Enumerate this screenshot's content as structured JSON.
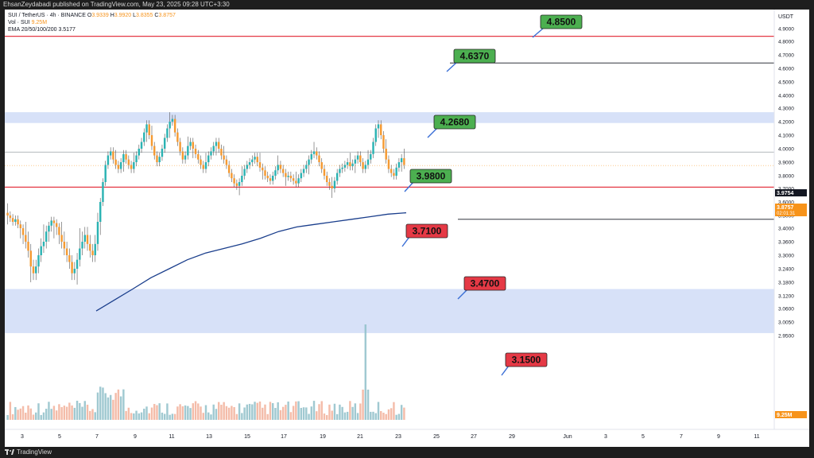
{
  "header": {
    "publisher_line": "EhsanZeydabadi published on TradingView.com, May 23, 2025 09:28 UTC+3:30"
  },
  "legend": {
    "symbol_line": "SUI / TetherUS · 4h · BINANCE",
    "o_label": "O",
    "o_value": "3.9339",
    "h_label": "H",
    "h_value": "3.9920",
    "l_label": "L",
    "l_value": "3.8355",
    "c_label": "C",
    "c_value": "3.8757",
    "vol_label": "Vol · SUI",
    "vol_value": "9.25M",
    "ema_label": "EMA 20/50/100/200",
    "ema_value": "3.5177"
  },
  "footer": {
    "brand": "TradingView"
  },
  "chart_data": {
    "type": "candlestick",
    "symbol": "SUI / TetherUS",
    "interval": "4h",
    "exchange": "BINANCE",
    "currency_label": "USDT",
    "y_ticks": [
      "4.9000",
      "4.8000",
      "4.7000",
      "4.6000",
      "4.5000",
      "4.4000",
      "4.3000",
      "4.2000",
      "4.1000",
      "4.0000",
      "3.9000",
      "3.8000",
      "3.7000",
      "3.6000",
      "3.5000",
      "3.4000",
      "3.3600",
      "3.3000",
      "3.2400",
      "3.1800",
      "3.1200",
      "3.0600",
      "3.0050",
      "2.9500"
    ],
    "x_ticks": [
      "3",
      "5",
      "7",
      "9",
      "11",
      "13",
      "15",
      "17",
      "19",
      "21",
      "23",
      "25",
      "27",
      "29",
      "Jun",
      "3",
      "5",
      "7",
      "9",
      "11"
    ],
    "price_tags": [
      {
        "value": "3.9754",
        "bg": "#131722",
        "fg": "#ffffff"
      },
      {
        "value": "3.8757",
        "sub": "02:01:31",
        "bg": "#f7931a",
        "fg": "#ffffff"
      },
      {
        "value": "9.25M",
        "bg": "#f7931a",
        "fg": "#ffffff"
      }
    ],
    "levels": [
      {
        "label": "4.8500",
        "price": 4.85,
        "color": "green"
      },
      {
        "label": "4.6370",
        "price": 4.637,
        "color": "green"
      },
      {
        "label": "4.2680",
        "price": 4.268,
        "color": "green"
      },
      {
        "label": "3.9800",
        "price": 3.98,
        "color": "green"
      },
      {
        "label": "3.7100",
        "price": 3.71,
        "color": "red"
      },
      {
        "label": "3.4700",
        "price": 3.47,
        "color": "red"
      },
      {
        "label": "3.1500",
        "price": 3.15,
        "color": "red"
      }
    ],
    "horizontal_lines": [
      {
        "price": 4.84,
        "color": "#e53945"
      },
      {
        "price": 4.64,
        "color": "#131722"
      },
      {
        "price": 3.975,
        "color": "#9aa0a6"
      },
      {
        "price": 3.71,
        "color": "#e53945"
      },
      {
        "price": 3.47,
        "color": "#131722"
      }
    ],
    "zones": [
      {
        "from": 4.19,
        "to": 4.27
      },
      {
        "from": 2.96,
        "to": 3.15
      }
    ],
    "ema_200": [
      3.05,
      3.1,
      3.15,
      3.2,
      3.24,
      3.28,
      3.31,
      3.33,
      3.35,
      3.37,
      3.39,
      3.41,
      3.43,
      3.45,
      3.47,
      3.49,
      3.51,
      3.52
    ],
    "candles_close": [
      3.5,
      3.48,
      3.45,
      3.47,
      3.43,
      3.4,
      3.38,
      3.36,
      3.32,
      3.25,
      3.22,
      3.25,
      3.3,
      3.34,
      3.36,
      3.39,
      3.42,
      3.46,
      3.44,
      3.41,
      3.38,
      3.36,
      3.33,
      3.3,
      3.27,
      3.22,
      3.24,
      3.28,
      3.33,
      3.36,
      3.38,
      3.35,
      3.32,
      3.3,
      3.35,
      3.45,
      3.6,
      3.75,
      3.88,
      3.95,
      3.98,
      3.92,
      3.88,
      3.85,
      3.9,
      3.96,
      3.92,
      3.88,
      3.85,
      3.9,
      3.95,
      4.0,
      4.05,
      4.12,
      4.18,
      4.1,
      4.02,
      3.95,
      3.9,
      3.94,
      4.0,
      4.08,
      4.15,
      4.2,
      4.22,
      4.12,
      4.05,
      3.98,
      3.92,
      3.95,
      4.02,
      4.05,
      4.0,
      3.96,
      3.92,
      3.88,
      3.85,
      3.9,
      3.95,
      3.98,
      4.02,
      4.05,
      4.0,
      3.95,
      3.92,
      3.88,
      3.82,
      3.78,
      3.74,
      3.72,
      3.75,
      3.8,
      3.85,
      3.88,
      3.9,
      3.92,
      3.94,
      3.9,
      3.86,
      3.84,
      3.8,
      3.78,
      3.76,
      3.8,
      3.84,
      3.88,
      3.85,
      3.82,
      3.79,
      3.8,
      3.78,
      3.76,
      3.74,
      3.78,
      3.82,
      3.85,
      3.88,
      3.92,
      3.96,
      3.98,
      3.95,
      3.9,
      3.85,
      3.8,
      3.75,
      3.72,
      3.7,
      3.76,
      3.82,
      3.85,
      3.86,
      3.88,
      3.9,
      3.87,
      3.89,
      3.92,
      3.95,
      3.9,
      3.85,
      3.88,
      3.92,
      3.96,
      4.05,
      4.15,
      4.18,
      4.1,
      4.0,
      3.92,
      3.85,
      3.82,
      3.8,
      3.86,
      3.9,
      3.93,
      3.88
    ]
  }
}
